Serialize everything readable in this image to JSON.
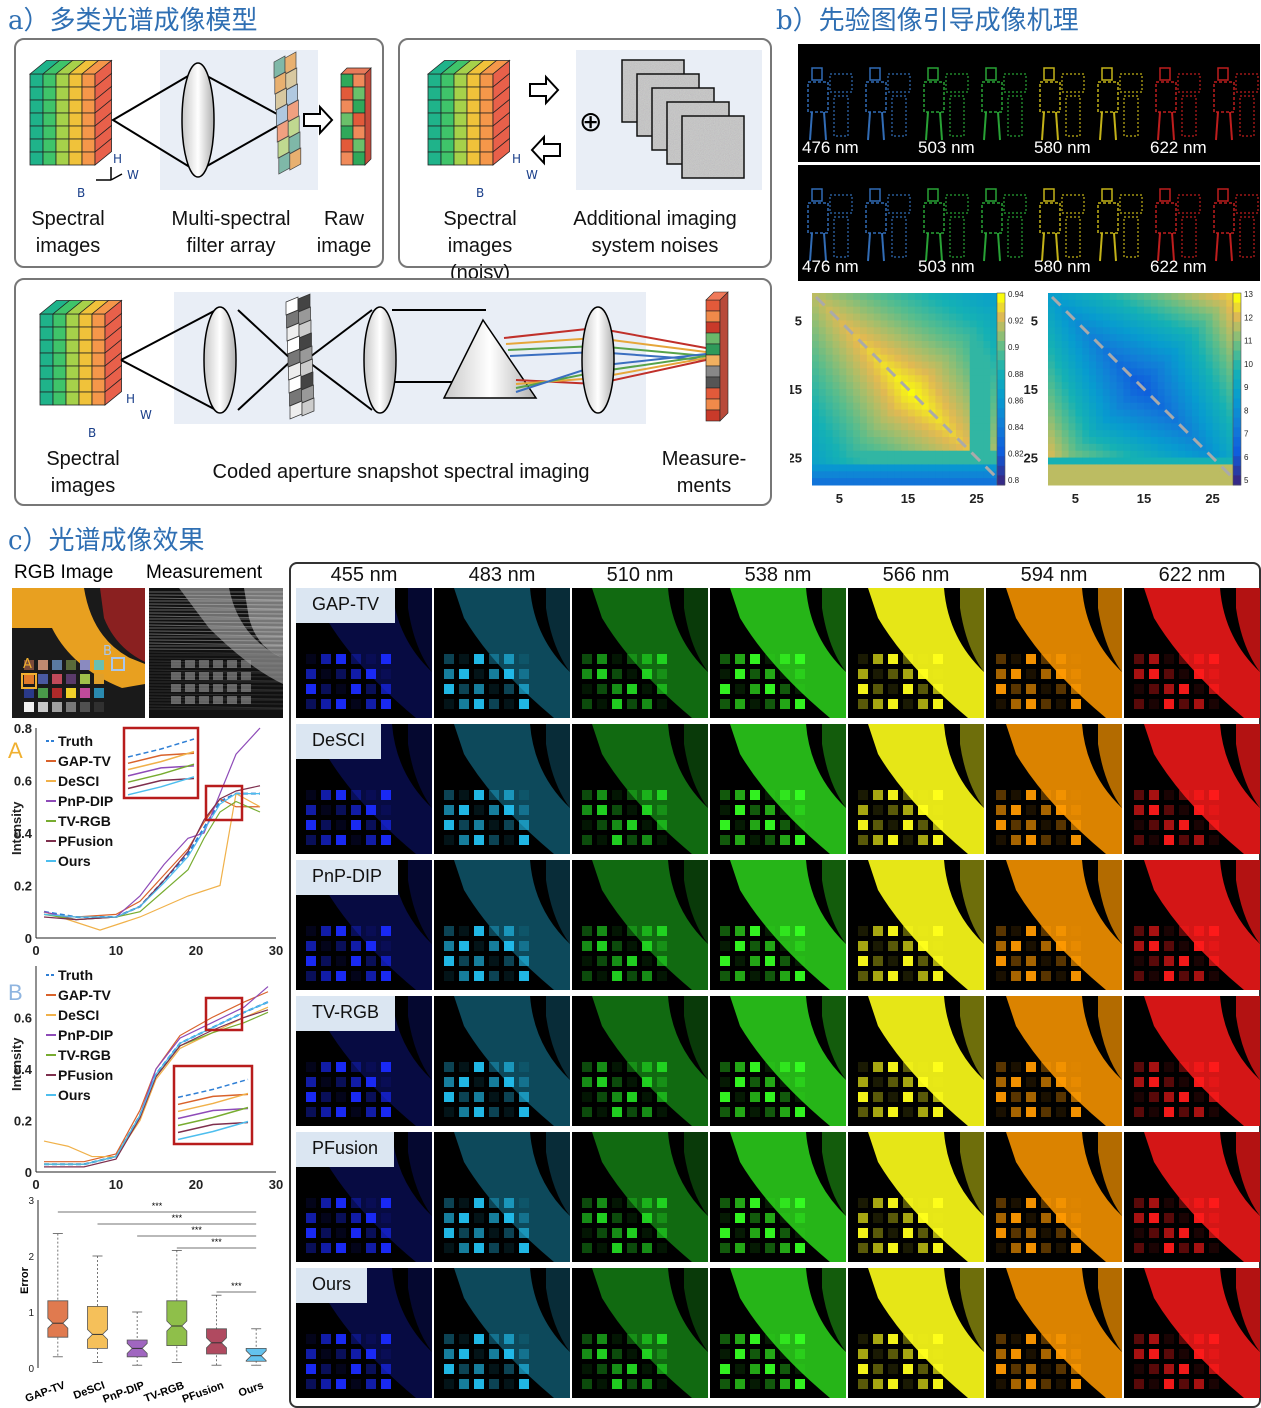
{
  "sections": {
    "a_title": "a）多类光谱成像模型",
    "b_title": "b）先验图像引导成像机理",
    "c_title": "c）光谱成像效果"
  },
  "panel_a1": {
    "label_spectral": "Spectral\nimages",
    "label_filter": "Multi-spectral\nfilter array",
    "label_raw": "Raw\nimage",
    "axis_h": "H",
    "axis_w": "W",
    "axis_b": "B"
  },
  "panel_a2": {
    "label_spectral_noisy": "Spectral\nimages (noisy)",
    "label_noises": "Additional imaging\nsystem noises",
    "plus_symbol": "⊕",
    "axis_h": "H",
    "axis_w": "W",
    "axis_b": "B"
  },
  "panel_a3": {
    "label_spectral": "Spectral\nimages",
    "label_cassi": "Coded aperture snapshot spectral imaging",
    "label_measurements": "Measure-\nments",
    "axis_h": "H",
    "axis_w": "W",
    "axis_b": "B"
  },
  "panel_b": {
    "row1_wavelengths": [
      "476 nm",
      "503 nm",
      "580 nm",
      "622 nm"
    ],
    "row2_wavelengths": [
      "476 nm",
      "503 nm",
      "580 nm",
      "622 nm"
    ],
    "band_colors": [
      "#3a7fd5",
      "#2fbf3f",
      "#e6d21d",
      "#e02323"
    ],
    "heatmap1": {
      "yticks": [
        "5",
        "15",
        "25"
      ],
      "xticks": [
        "5",
        "15",
        "25"
      ],
      "colorbar_ticks": [
        "0.94",
        "0.92",
        "0.9",
        "0.88",
        "0.86",
        "0.84",
        "0.82",
        "0.8"
      ]
    },
    "heatmap2": {
      "yticks": [
        "5",
        "15",
        "25"
      ],
      "xticks": [
        "5",
        "15",
        "25"
      ],
      "colorbar_ticks": [
        "13",
        "12",
        "11",
        "10",
        "9",
        "8",
        "7",
        "6",
        "5"
      ]
    }
  },
  "panel_c": {
    "rgb_title": "RGB Image",
    "meas_title": "Measurement",
    "point_a": "A",
    "point_b": "B",
    "wavelength_headers": [
      "455 nm",
      "483 nm",
      "510 nm",
      "538 nm",
      "566 nm",
      "594 nm",
      "622 nm"
    ],
    "methods": [
      "GAP-TV",
      "DeSCI",
      "PnP-DIP",
      "TV-RGB",
      "PFusion",
      "Ours"
    ],
    "wavelength_colors": [
      "#1a2bff",
      "#22c0f0",
      "#22d822",
      "#35ff22",
      "#ffff1a",
      "#ff9900",
      "#ff1a1a"
    ]
  },
  "chart_data": [
    {
      "type": "line",
      "title": "A",
      "ylabel": "Intensity",
      "xlim": [
        0,
        30
      ],
      "ylim": [
        0,
        0.8
      ],
      "xticks": [
        "0",
        "10",
        "20",
        "30"
      ],
      "yticks": [
        "0",
        "0.2",
        "0.4",
        "0.6",
        "0.8"
      ],
      "legend_position": "top-left",
      "series": [
        {
          "name": "Truth",
          "color": "#2f7fd5",
          "dashed": true,
          "values": [
            [
              1,
              0.1
            ],
            [
              5,
              0.08
            ],
            [
              10,
              0.08
            ],
            [
              13,
              0.12
            ],
            [
              16,
              0.22
            ],
            [
              19,
              0.32
            ],
            [
              21,
              0.42
            ],
            [
              23,
              0.52
            ],
            [
              25,
              0.55
            ],
            [
              28,
              0.55
            ]
          ]
        },
        {
          "name": "GAP-TV",
          "color": "#d9622b",
          "values": [
            [
              1,
              0.09
            ],
            [
              5,
              0.08
            ],
            [
              10,
              0.09
            ],
            [
              13,
              0.14
            ],
            [
              16,
              0.24
            ],
            [
              19,
              0.34
            ],
            [
              21,
              0.44
            ],
            [
              23,
              0.53
            ],
            [
              25,
              0.5
            ],
            [
              28,
              0.5
            ]
          ]
        },
        {
          "name": "DeSCI",
          "color": "#f0b14a",
          "values": [
            [
              1,
              0.1
            ],
            [
              5,
              0.06
            ],
            [
              8,
              0.03
            ],
            [
              10,
              0.05
            ],
            [
              13,
              0.08
            ],
            [
              16,
              0.12
            ],
            [
              19,
              0.16
            ],
            [
              21,
              0.18
            ],
            [
              23,
              0.2
            ],
            [
              25,
              0.55
            ],
            [
              28,
              0.5
            ]
          ]
        },
        {
          "name": "PnP-DIP",
          "color": "#8e4bb8",
          "values": [
            [
              1,
              0.1
            ],
            [
              5,
              0.07
            ],
            [
              10,
              0.08
            ],
            [
              13,
              0.16
            ],
            [
              16,
              0.28
            ],
            [
              19,
              0.38
            ],
            [
              21,
              0.4
            ],
            [
              23,
              0.55
            ],
            [
              25,
              0.7
            ],
            [
              28,
              0.8
            ]
          ]
        },
        {
          "name": "TV-RGB",
          "color": "#77ac30",
          "values": [
            [
              1,
              0.09
            ],
            [
              5,
              0.07
            ],
            [
              10,
              0.08
            ],
            [
              13,
              0.1
            ],
            [
              16,
              0.18
            ],
            [
              19,
              0.26
            ],
            [
              21,
              0.38
            ],
            [
              23,
              0.48
            ],
            [
              25,
              0.52
            ],
            [
              28,
              0.48
            ]
          ]
        },
        {
          "name": "PFusion",
          "color": "#7e2f4e",
          "values": [
            [
              1,
              0.08
            ],
            [
              5,
              0.07
            ],
            [
              10,
              0.08
            ],
            [
              13,
              0.12
            ],
            [
              16,
              0.22
            ],
            [
              19,
              0.33
            ],
            [
              21,
              0.45
            ],
            [
              23,
              0.53
            ],
            [
              25,
              0.56
            ],
            [
              28,
              0.58
            ]
          ]
        },
        {
          "name": "Ours",
          "color": "#4dbeee",
          "values": [
            [
              1,
              0.09
            ],
            [
              5,
              0.08
            ],
            [
              10,
              0.08
            ],
            [
              13,
              0.12
            ],
            [
              16,
              0.21
            ],
            [
              19,
              0.31
            ],
            [
              21,
              0.41
            ],
            [
              23,
              0.51
            ],
            [
              25,
              0.55
            ],
            [
              28,
              0.55
            ]
          ]
        }
      ]
    },
    {
      "type": "line",
      "title": "B",
      "ylabel": "Intensity",
      "xlim": [
        0,
        30
      ],
      "ylim": [
        0,
        0.8
      ],
      "xticks": [
        "0",
        "10",
        "20",
        "30"
      ],
      "yticks": [
        "0",
        "0.2",
        "0.4",
        "0.6"
      ],
      "legend_position": "top-left",
      "series": [
        {
          "name": "Truth",
          "color": "#2f7fd5",
          "dashed": true,
          "values": [
            [
              1,
              0.03
            ],
            [
              6,
              0.03
            ],
            [
              10,
              0.06
            ],
            [
              13,
              0.22
            ],
            [
              15,
              0.38
            ],
            [
              18,
              0.5
            ],
            [
              22,
              0.56
            ],
            [
              26,
              0.62
            ],
            [
              29,
              0.66
            ]
          ]
        },
        {
          "name": "GAP-TV",
          "color": "#d9622b",
          "values": [
            [
              1,
              0.04
            ],
            [
              6,
              0.04
            ],
            [
              10,
              0.07
            ],
            [
              13,
              0.24
            ],
            [
              15,
              0.4
            ],
            [
              18,
              0.53
            ],
            [
              22,
              0.6
            ],
            [
              26,
              0.66
            ],
            [
              29,
              0.7
            ]
          ]
        },
        {
          "name": "DeSCI",
          "color": "#f0b14a",
          "values": [
            [
              1,
              0.12
            ],
            [
              4,
              0.1
            ],
            [
              7,
              0.06
            ],
            [
              10,
              0.06
            ],
            [
              13,
              0.2
            ],
            [
              15,
              0.36
            ],
            [
              18,
              0.48
            ],
            [
              22,
              0.54
            ],
            [
              26,
              0.6
            ],
            [
              29,
              0.64
            ]
          ]
        },
        {
          "name": "PnP-DIP",
          "color": "#8e4bb8",
          "values": [
            [
              1,
              0.03
            ],
            [
              6,
              0.03
            ],
            [
              10,
              0.06
            ],
            [
              13,
              0.22
            ],
            [
              15,
              0.4
            ],
            [
              18,
              0.52
            ],
            [
              22,
              0.58
            ],
            [
              26,
              0.64
            ],
            [
              29,
              0.72
            ]
          ]
        },
        {
          "name": "TV-RGB",
          "color": "#77ac30",
          "values": [
            [
              1,
              0.03
            ],
            [
              6,
              0.03
            ],
            [
              10,
              0.06
            ],
            [
              13,
              0.22
            ],
            [
              15,
              0.37
            ],
            [
              18,
              0.49
            ],
            [
              22,
              0.54
            ],
            [
              26,
              0.58
            ],
            [
              29,
              0.62
            ]
          ]
        },
        {
          "name": "PFusion",
          "color": "#7e2f4e",
          "values": [
            [
              1,
              0.02
            ],
            [
              6,
              0.02
            ],
            [
              10,
              0.05
            ],
            [
              13,
              0.21
            ],
            [
              15,
              0.37
            ],
            [
              18,
              0.49
            ],
            [
              22,
              0.55
            ],
            [
              26,
              0.6
            ],
            [
              29,
              0.63
            ]
          ]
        },
        {
          "name": "Ours",
          "color": "#4dbeee",
          "values": [
            [
              1,
              0.03
            ],
            [
              6,
              0.03
            ],
            [
              10,
              0.06
            ],
            [
              13,
              0.22
            ],
            [
              15,
              0.38
            ],
            [
              18,
              0.5
            ],
            [
              22,
              0.56
            ],
            [
              26,
              0.62
            ],
            [
              29,
              0.66
            ]
          ]
        }
      ]
    },
    {
      "type": "box",
      "ylabel": "Error",
      "ylim": [
        0,
        3
      ],
      "yticks": [
        "0",
        "1",
        "2",
        "3"
      ],
      "categories": [
        "GAP-TV",
        "DeSCI",
        "PnP-DIP",
        "TV-RGB",
        "PFusion",
        "Ours"
      ],
      "colors": [
        "#e07a4f",
        "#f5c05a",
        "#a066c0",
        "#8fbf4a",
        "#b04a60",
        "#64c3ee"
      ],
      "boxes": [
        {
          "min": 0.2,
          "q1": 0.55,
          "median": 0.8,
          "q3": 1.2,
          "max": 2.4
        },
        {
          "min": 0.1,
          "q1": 0.35,
          "median": 0.6,
          "q3": 1.1,
          "max": 2.0
        },
        {
          "min": 0.05,
          "q1": 0.2,
          "median": 0.35,
          "q3": 0.5,
          "max": 1.0
        },
        {
          "min": 0.1,
          "q1": 0.4,
          "median": 0.75,
          "q3": 1.2,
          "max": 2.1
        },
        {
          "min": 0.05,
          "q1": 0.25,
          "median": 0.45,
          "q3": 0.7,
          "max": 1.3
        },
        {
          "min": 0.05,
          "q1": 0.12,
          "median": 0.22,
          "q3": 0.35,
          "max": 0.7
        }
      ],
      "significance": [
        "***",
        "***",
        "***",
        "***",
        "***"
      ]
    }
  ]
}
